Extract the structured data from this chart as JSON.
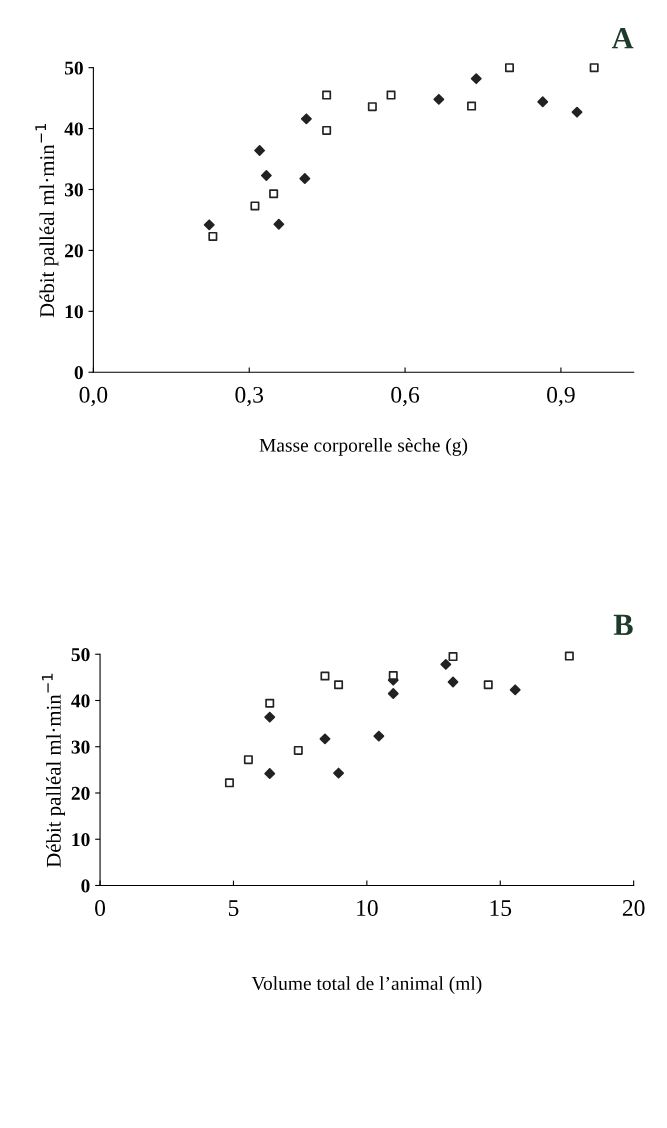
{
  "chart_data": [
    {
      "type": "scatter",
      "title": "A",
      "xlabel": "Masse corporelle sèche (g)",
      "ylabel": "Débit palléal ml·min$^{−1}$",
      "xlim": [
        0,
        1.04
      ],
      "xticks": [
        {
          "value": 0,
          "label": "0,0"
        },
        {
          "value": 0.3,
          "label": "0,3"
        },
        {
          "value": 0.6,
          "label": "0,6"
        },
        {
          "value": 0.9,
          "label": "0,9"
        }
      ],
      "ylim": [
        0,
        50
      ],
      "yticks": [
        0,
        10,
        20,
        30,
        40,
        50
      ],
      "grid": false,
      "legend": false,
      "series": [
        {
          "color": "#222222",
          "marker": "diamond",
          "x": [
            0.223,
            0.32,
            0.333,
            0.357,
            0.407,
            0.41,
            0.665,
            0.737,
            0.865,
            0.931
          ],
          "values": [
            24.2,
            36.4,
            32.3,
            24.3,
            31.8,
            41.6,
            44.8,
            48.2,
            44.4,
            42.7
          ]
        },
        {
          "color": "#222222",
          "marker": "square",
          "x": [
            0.23,
            0.311,
            0.347,
            0.449,
            0.449,
            0.537,
            0.573,
            0.728,
            0.801,
            0.964
          ],
          "values": [
            22.3,
            27.3,
            29.3,
            45.5,
            39.7,
            43.6,
            45.5,
            43.7,
            50.0,
            50.0
          ]
        }
      ]
    },
    {
      "type": "scatter",
      "title": "B",
      "xlabel": "Volume total de l’animal (ml)",
      "ylabel": "Débit palléal ml·min$^{−1}$",
      "xlim": [
        0,
        20
      ],
      "xticks": [
        0,
        5,
        10,
        15,
        20
      ],
      "ylim": [
        0,
        50
      ],
      "yticks": [
        0,
        10,
        20,
        30,
        40,
        50
      ],
      "grid": false,
      "legend": false,
      "series": [
        {
          "color": "#222222",
          "marker": "diamond",
          "x": [
            6.36,
            6.36,
            8.43,
            8.94,
            10.45,
            10.99,
            10.99,
            12.96,
            13.23,
            15.56
          ],
          "values": [
            36.4,
            24.2,
            31.7,
            24.3,
            32.3,
            44.4,
            41.5,
            47.8,
            44.0,
            42.3
          ]
        },
        {
          "color": "#222222",
          "marker": "square",
          "x": [
            4.85,
            5.56,
            6.36,
            7.43,
            8.43,
            8.94,
            10.99,
            13.23,
            14.55,
            17.59
          ],
          "values": [
            22.2,
            27.2,
            39.4,
            29.2,
            45.3,
            43.4,
            45.4,
            49.5,
            43.4,
            49.6
          ]
        }
      ]
    }
  ]
}
